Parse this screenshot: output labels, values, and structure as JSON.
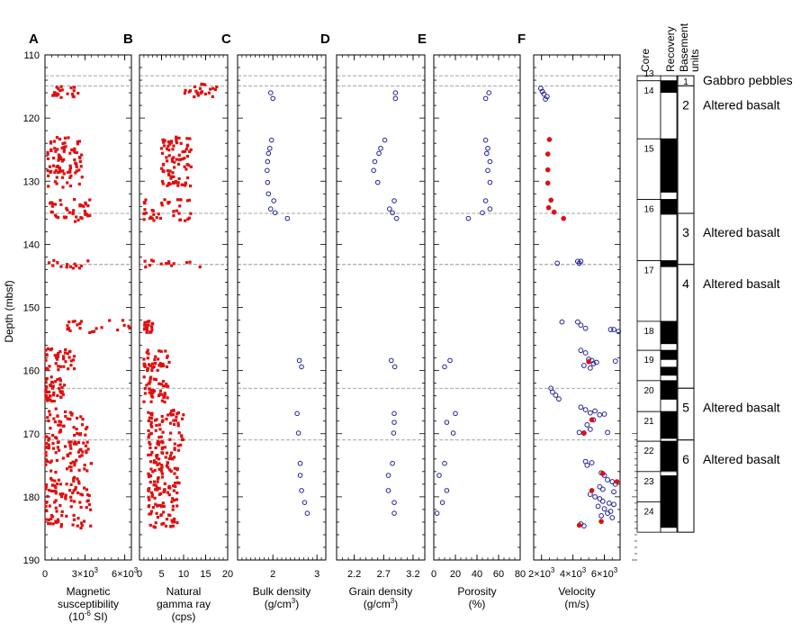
{
  "y_axis": {
    "label": "Depth (mbsf)",
    "range": [
      110,
      190
    ],
    "ticks": [
      110,
      120,
      130,
      140,
      150,
      160,
      170,
      180,
      190
    ]
  },
  "boundaries": [
    113.3,
    114.9,
    135.1,
    143.2,
    162.8,
    171.0
  ],
  "panels": [
    {
      "letter": "A",
      "title_lines": [
        "Magnetic",
        "susceptibility"
      ],
      "unit": "(10",
      "unit_sup": "-6",
      "unit_post": " SI)",
      "tick_labels": [
        "0",
        "3×10",
        "6×10"
      ],
      "tick_sups": [
        "",
        "3",
        "3"
      ]
    },
    {
      "letter": "B",
      "title_lines": [
        "Natural",
        "gamma ray"
      ],
      "unit": "(cps)",
      "tick_labels": [
        "0",
        "5",
        "10",
        "15",
        "20"
      ]
    },
    {
      "letter": "C",
      "title_lines": [
        "Bulk density"
      ],
      "unit": "(g/cm",
      "unit_sup": "3",
      "unit_post": ")",
      "tick_labels": [
        "2",
        "3"
      ]
    },
    {
      "letter": "D",
      "title_lines": [
        "Grain density"
      ],
      "unit": "(g/cm",
      "unit_sup": "3",
      "unit_post": ")",
      "tick_labels": [
        "2.2",
        "2.7",
        "3.2"
      ]
    },
    {
      "letter": "E",
      "title_lines": [
        "Porosity"
      ],
      "unit": "(%)",
      "tick_labels": [
        "0",
        "20",
        "40",
        "60",
        "80"
      ]
    },
    {
      "letter": "F",
      "title_lines": [
        "Velocity"
      ],
      "unit": "(m/s)",
      "tick_labels": [
        "2×10",
        "4×10",
        "6×10"
      ],
      "tick_sups": [
        "3",
        "3",
        "3"
      ]
    }
  ],
  "chart_data": {
    "type": "scatter",
    "ylabel": "Depth (mbsf)",
    "ylim": [
      190,
      110
    ],
    "series": [
      {
        "panel": "A",
        "xlabel": "Magnetic susceptibility (10-6 SI)",
        "xlim": [
          0,
          6500
        ],
        "marker": "red-square",
        "clusters": [
          {
            "depth": [
              114.8,
              116.8
            ],
            "x": [
              300,
              2500
            ]
          },
          {
            "depth": [
              123,
              131
            ],
            "x": [
              200,
              2800
            ]
          },
          {
            "depth": [
              132.8,
              136.5
            ],
            "x": [
              300,
              3400
            ]
          },
          {
            "depth": [
              142.5,
              143.8
            ],
            "x": [
              300,
              3300
            ]
          },
          {
            "depth": [
              152,
              154
            ],
            "x": [
              1500,
              6800
            ]
          },
          {
            "depth": [
              156.5,
              160
            ],
            "x": [
              0,
              2300
            ]
          },
          {
            "depth": [
              161,
              165
            ],
            "x": [
              0,
              1500
            ]
          },
          {
            "depth": [
              166,
              172
            ],
            "x": [
              0,
              3200
            ]
          },
          {
            "depth": [
              172,
              185
            ],
            "x": [
              0,
              3600
            ]
          }
        ]
      },
      {
        "panel": "B",
        "xlabel": "Natural gamma ray (cps)",
        "xlim": [
          0,
          20
        ],
        "marker": "red-square",
        "clusters": [
          {
            "depth": [
              114.6,
              116.8
            ],
            "x": [
              10,
              18
            ]
          },
          {
            "depth": [
              123,
              131
            ],
            "x": [
              5,
              12
            ]
          },
          {
            "depth": [
              132.8,
              136.5
            ],
            "x": [
              1,
              12
            ]
          },
          {
            "depth": [
              142.5,
              143.8
            ],
            "x": [
              1,
              14
            ]
          },
          {
            "depth": [
              152,
              154
            ],
            "x": [
              1,
              3
            ]
          },
          {
            "depth": [
              156.5,
              160
            ],
            "x": [
              1,
              7
            ]
          },
          {
            "depth": [
              161,
              165
            ],
            "x": [
              1,
              7
            ]
          },
          {
            "depth": [
              166,
              172
            ],
            "x": [
              2,
              10
            ]
          },
          {
            "depth": [
              172,
              185
            ],
            "x": [
              2,
              9
            ]
          }
        ]
      },
      {
        "panel": "C",
        "xlabel": "Bulk density (g/cm3)",
        "xlim": [
          1.2,
          3.2
        ],
        "marker": "blue-open-circle",
        "points": [
          [
            1.95,
            116
          ],
          [
            2.0,
            116.9
          ],
          [
            1.97,
            123.5
          ],
          [
            1.93,
            124.8
          ],
          [
            1.9,
            125.6
          ],
          [
            1.88,
            126.9
          ],
          [
            1.87,
            128.3
          ],
          [
            1.88,
            130.2
          ],
          [
            1.9,
            132
          ],
          [
            2.02,
            133.1
          ],
          [
            1.95,
            134.4
          ],
          [
            2.05,
            135
          ],
          [
            2.33,
            135.9
          ],
          [
            2.6,
            158.4
          ],
          [
            2.65,
            159.4
          ],
          [
            2.55,
            166.8
          ],
          [
            2.58,
            169.9
          ],
          [
            2.62,
            174.7
          ],
          [
            2.62,
            176.6
          ],
          [
            2.65,
            179
          ],
          [
            2.72,
            180.9
          ],
          [
            2.78,
            182.6
          ]
        ]
      },
      {
        "panel": "D",
        "xlabel": "Grain density (g/cm3)",
        "xlim": [
          1.9,
          3.4
        ],
        "marker": "blue-open-circle",
        "points": [
          [
            2.9,
            116
          ],
          [
            2.9,
            116.9
          ],
          [
            2.72,
            123.5
          ],
          [
            2.65,
            124.8
          ],
          [
            2.62,
            125.6
          ],
          [
            2.55,
            126.9
          ],
          [
            2.53,
            128.3
          ],
          [
            2.6,
            130.2
          ],
          [
            2.88,
            133.1
          ],
          [
            2.8,
            134.4
          ],
          [
            2.85,
            135
          ],
          [
            2.92,
            135.9
          ],
          [
            2.83,
            158.4
          ],
          [
            2.89,
            159.4
          ],
          [
            2.88,
            166.8
          ],
          [
            2.88,
            168.2
          ],
          [
            2.87,
            169.9
          ],
          [
            2.85,
            174.7
          ],
          [
            2.78,
            176.6
          ],
          [
            2.78,
            179
          ],
          [
            2.88,
            180.9
          ],
          [
            2.88,
            182.6
          ]
        ]
      },
      {
        "panel": "E",
        "xlabel": "Porosity (%)",
        "xlim": [
          0,
          80
        ],
        "marker": "blue-open-circle",
        "points": [
          [
            51,
            116
          ],
          [
            48,
            116.9
          ],
          [
            48,
            123.5
          ],
          [
            50,
            124.8
          ],
          [
            49,
            125.6
          ],
          [
            52,
            126.9
          ],
          [
            50,
            128.3
          ],
          [
            52,
            130.2
          ],
          [
            48,
            133.1
          ],
          [
            52,
            134.4
          ],
          [
            45,
            135
          ],
          [
            32,
            135.9
          ],
          [
            15,
            158.4
          ],
          [
            10,
            159.4
          ],
          [
            20,
            166.8
          ],
          [
            12,
            168.2
          ],
          [
            18,
            169.9
          ],
          [
            10,
            174.7
          ],
          [
            5,
            176.6
          ],
          [
            12,
            179
          ],
          [
            8,
            180.9
          ],
          [
            3,
            182.6
          ]
        ]
      },
      {
        "panel": "F",
        "xlabel": "Velocity (m/s)",
        "xlim": [
          1500,
          7000
        ],
        "markers": {
          "open": "blue-open-circle",
          "filled": "red-filled-circle"
        },
        "open_points": [
          [
            1950,
            115.3
          ],
          [
            2050,
            115.8
          ],
          [
            2150,
            116.2
          ],
          [
            2350,
            116.6
          ],
          [
            2250,
            117
          ],
          [
            3000,
            143
          ],
          [
            4300,
            142.7
          ],
          [
            4500,
            142.7
          ],
          [
            4400,
            143
          ],
          [
            3300,
            152.3
          ],
          [
            4300,
            152.3
          ],
          [
            4500,
            152.8
          ],
          [
            4800,
            153.3
          ],
          [
            6400,
            153.5
          ],
          [
            6600,
            153.5
          ],
          [
            6900,
            153.8
          ],
          [
            4500,
            156.8
          ],
          [
            4800,
            157.2
          ],
          [
            5000,
            158.2
          ],
          [
            5200,
            158.4
          ],
          [
            5500,
            158.7
          ],
          [
            4700,
            159.2
          ],
          [
            5100,
            159.6
          ],
          [
            5300,
            158.9
          ],
          [
            6700,
            158.5
          ],
          [
            2600,
            162.8
          ],
          [
            2700,
            163.4
          ],
          [
            2900,
            163.9
          ],
          [
            3100,
            164.5
          ],
          [
            4500,
            165.8
          ],
          [
            4800,
            166.2
          ],
          [
            5100,
            166.7
          ],
          [
            5400,
            166.4
          ],
          [
            5700,
            167
          ],
          [
            5300,
            167.8
          ],
          [
            4900,
            168.6
          ],
          [
            5100,
            169.3
          ],
          [
            4400,
            169.8
          ],
          [
            4700,
            169.9
          ],
          [
            6000,
            166.9
          ],
          [
            6200,
            169.8
          ],
          [
            4800,
            174.4
          ],
          [
            5200,
            174.6
          ],
          [
            4900,
            175
          ],
          [
            5800,
            176.2
          ],
          [
            6000,
            176.6
          ],
          [
            6200,
            177.3
          ],
          [
            6500,
            177.6
          ],
          [
            6700,
            178
          ],
          [
            5700,
            178.4
          ],
          [
            5900,
            178.8
          ],
          [
            6600,
            179.2
          ],
          [
            5100,
            179.6
          ],
          [
            5400,
            180
          ],
          [
            5700,
            180.3
          ],
          [
            5900,
            180.7
          ],
          [
            6300,
            181
          ],
          [
            6600,
            181.2
          ],
          [
            5600,
            181.5
          ],
          [
            6000,
            181.9
          ],
          [
            6400,
            182.3
          ],
          [
            6200,
            182.6
          ],
          [
            5800,
            183
          ],
          [
            6500,
            183.3
          ],
          [
            4500,
            184.3
          ],
          [
            4700,
            184.6
          ]
        ],
        "filled_points": [
          [
            2500,
            123.4
          ],
          [
            2400,
            125.7
          ],
          [
            2400,
            128.2
          ],
          [
            2400,
            130.3
          ],
          [
            2600,
            133
          ],
          [
            2450,
            134.2
          ],
          [
            2800,
            134.9
          ],
          [
            3400,
            135.9
          ],
          [
            5000,
            158.6
          ],
          [
            5200,
            167.8
          ],
          [
            4700,
            169.9
          ],
          [
            5900,
            176.3
          ],
          [
            6800,
            177.6
          ],
          [
            5200,
            179
          ],
          [
            5800,
            183.9
          ],
          [
            4400,
            184.5
          ]
        ]
      }
    ]
  },
  "core_column": {
    "title": "Core",
    "cores": [
      {
        "label": "13",
        "top": 113.3,
        "bottom": 114.1
      },
      {
        "label": "14",
        "top": 114.1,
        "bottom": 123.3
      },
      {
        "label": "15",
        "top": 123.3,
        "bottom": 132.9
      },
      {
        "label": "16",
        "top": 132.9,
        "bottom": 142.6
      },
      {
        "label": "17",
        "top": 142.6,
        "bottom": 152.2
      },
      {
        "label": "18",
        "top": 152.2,
        "bottom": 156.8
      },
      {
        "label": "19",
        "top": 156.8,
        "bottom": 161.6
      },
      {
        "label": "20",
        "top": 161.6,
        "bottom": 166.5
      },
      {
        "label": "21",
        "top": 166.5,
        "bottom": 171.2
      },
      {
        "label": "22",
        "top": 171.2,
        "bottom": 176.0
      },
      {
        "label": "23",
        "top": 176.0,
        "bottom": 180.8
      },
      {
        "label": "24",
        "top": 180.8,
        "bottom": 185.6
      }
    ]
  },
  "recovery_column": {
    "title": "Recovery",
    "recovered": [
      [
        114.1,
        116.0
      ],
      [
        123.3,
        131.8
      ],
      [
        132.9,
        135.3
      ],
      [
        142.6,
        143.6
      ],
      [
        152.2,
        155.8
      ],
      [
        156.8,
        158.3
      ],
      [
        159.4,
        160.8
      ],
      [
        161.6,
        164.6
      ],
      [
        166.5,
        170.8
      ],
      [
        171.2,
        175.9
      ],
      [
        176.6,
        180.8
      ],
      [
        180.8,
        184.9
      ]
    ]
  },
  "units_column": {
    "title_lines": [
      "Basement",
      "units"
    ],
    "units": [
      {
        "number": "1",
        "top": 113.3,
        "bottom": 114.9,
        "description": "Gabbro pebbles"
      },
      {
        "number": "2",
        "top": 114.9,
        "bottom": 135.1,
        "description": "Altered basalt"
      },
      {
        "number": "3",
        "top": 135.1,
        "bottom": 143.2,
        "description": "Altered basalt"
      },
      {
        "number": "4",
        "top": 143.2,
        "bottom": 162.8,
        "description": "Altered basalt"
      },
      {
        "number": "5",
        "top": 162.8,
        "bottom": 171.0,
        "description": "Altered basalt"
      },
      {
        "number": "6",
        "top": 171.0,
        "bottom": 185.6,
        "description": "Altered basalt"
      }
    ]
  },
  "colors": {
    "red": "#dd1111",
    "blue": "#22229a",
    "dash": "#888888"
  }
}
